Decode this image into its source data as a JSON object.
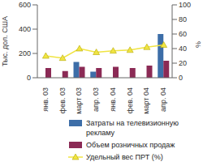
{
  "chart_data": {
    "type": "bar",
    "categories": [
      "янв. 03",
      "фев. 03",
      "март 03",
      "апр. 03",
      "янв. 04",
      "фев. 04",
      "март 04",
      "апр. 04"
    ],
    "y_label": "Тыс. дол. США",
    "y2_label": "%",
    "ylim": [
      0,
      600
    ],
    "yticks": [
      0,
      200,
      400,
      600
    ],
    "y2lim": [
      0,
      100
    ],
    "y2ticks": [
      0,
      20,
      40,
      60,
      80,
      100
    ],
    "legend": "bottom",
    "series": [
      {
        "name": "Затраты на телевизионную рекламу",
        "color": "#3d6ea8",
        "type": "bar",
        "values": [
          0,
          0,
          130,
          50,
          0,
          0,
          0,
          360
        ]
      },
      {
        "name": "Объем розничных продаж",
        "color": "#8b2a55",
        "type": "bar",
        "values": [
          80,
          55,
          90,
          80,
          90,
          80,
          100,
          140
        ]
      },
      {
        "name": "Удельный вес ПРТ (%)",
        "color": "#f0e442",
        "type": "line",
        "axis": "y2",
        "marker": "triangle",
        "values": [
          30,
          27,
          40,
          35,
          37,
          38,
          42,
          45
        ]
      }
    ]
  }
}
